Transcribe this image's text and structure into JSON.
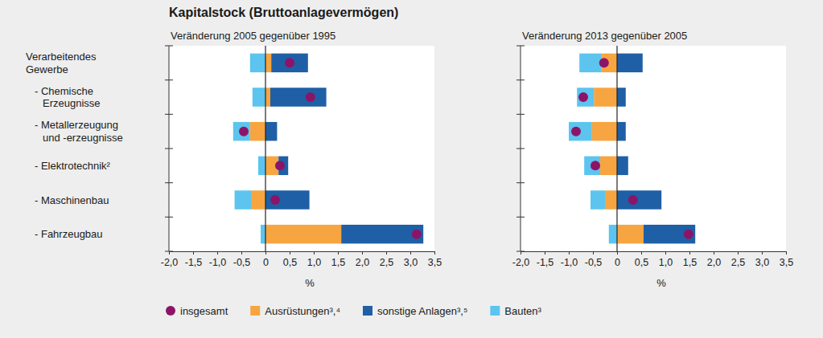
{
  "title": "Kapitalstock (Bruttoanlagevermögen)",
  "chart_data": [
    {
      "type": "bar",
      "orientation": "horizontal",
      "stacked": true,
      "grid": false,
      "legend": "bottom",
      "title": "Veränderung 2005 gegenüber 1995",
      "xlabel": "%",
      "categories": [
        "Verarbeitendes\nGewerbe",
        "- Chemische\nErzeugnisse",
        "- Metallerzeugung\nund -erzeugnisse",
        "- Elektrotechnik²",
        "- Maschinenbau",
        "- Fahrzeugbau"
      ],
      "xlim": [
        -2,
        3.5
      ],
      "xticks": [
        {
          "value": -2,
          "label": "-2,0"
        },
        {
          "value": -1.5,
          "label": "-1,5"
        },
        {
          "value": -1,
          "label": "-1,0"
        },
        {
          "value": -0.5,
          "label": "-0,5"
        },
        0,
        {
          "value": 0.5,
          "label": "0,5"
        },
        {
          "value": 1,
          "label": "1,0"
        },
        {
          "value": 1.5,
          "label": "1,5"
        },
        {
          "value": 2,
          "label": "2,0"
        },
        {
          "value": 2.5,
          "label": "2,5"
        },
        {
          "value": 3,
          "label": "3,0"
        },
        {
          "value": 3.5,
          "label": "3,5"
        }
      ],
      "series": [
        {
          "name": "insgesamt",
          "type": "scatter",
          "marker": "circle",
          "color": "#8c1468",
          "values": [
            0.5,
            0.93,
            -0.45,
            0.3,
            0.2,
            3.13
          ]
        },
        {
          "name": "Ausrüstungen³,⁴",
          "color": "#f7a541",
          "values": [
            0.12,
            0.1,
            -0.32,
            0.27,
            -0.3,
            1.57
          ]
        },
        {
          "name": "sonstige Anlagen³,⁵",
          "color": "#1f5fa6",
          "values": [
            0.76,
            1.16,
            0.24,
            0.2,
            0.91,
            1.7
          ]
        },
        {
          "name": "Bauten³",
          "color": "#5cc4ef",
          "values": [
            -0.32,
            -0.27,
            -0.35,
            -0.15,
            -0.34,
            -0.1
          ]
        }
      ]
    },
    {
      "type": "bar",
      "orientation": "horizontal",
      "stacked": true,
      "grid": false,
      "title": "Veränderung 2013 gegenüber 2005",
      "xlabel": "%",
      "categories": [
        null,
        null,
        null,
        null,
        null,
        null
      ],
      "xlim": [
        -2,
        3.5
      ],
      "xticks": [
        {
          "value": -2,
          "label": "-2,0"
        },
        {
          "value": -1.5,
          "label": "-1,5"
        },
        {
          "value": -1,
          "label": "-1,0"
        },
        {
          "value": -0.5,
          "label": "-0,5"
        },
        0,
        {
          "value": 0.5,
          "label": "0,5"
        },
        {
          "value": 1,
          "label": "1,0"
        },
        {
          "value": 1.5,
          "label": "1,5"
        },
        {
          "value": 2,
          "label": "2,0"
        },
        {
          "value": 2.5,
          "label": "2,5"
        },
        {
          "value": 3,
          "label": "3,0"
        },
        {
          "value": 3.5,
          "label": "3,5"
        }
      ],
      "series": [
        {
          "type": "scatter",
          "marker": "circle",
          "color": "#8c1468",
          "values": [
            -0.27,
            -0.7,
            -0.85,
            -0.45,
            0.33,
            1.48
          ]
        },
        {
          "color": "#f7a541",
          "values": [
            -0.32,
            -0.48,
            -0.52,
            -0.35,
            -0.25,
            0.55
          ]
        },
        {
          "color": "#1f5fa6",
          "values": [
            0.53,
            0.18,
            0.18,
            0.23,
            0.92,
            1.07
          ]
        },
        {
          "color": "#5cc4ef",
          "values": [
            -0.46,
            -0.35,
            -0.48,
            -0.33,
            -0.3,
            -0.17
          ]
        }
      ]
    }
  ]
}
